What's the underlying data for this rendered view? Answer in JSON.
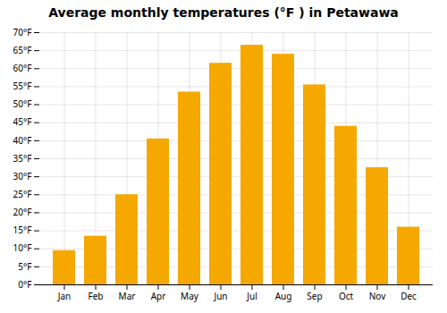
{
  "chart_data": {
    "type": "bar",
    "title": "Average monthly temperatures (°F ) in Petawawa",
    "categories": [
      "Jan",
      "Feb",
      "Mar",
      "Apr",
      "May",
      "Jun",
      "Jul",
      "Aug",
      "Sep",
      "Oct",
      "Nov",
      "Dec"
    ],
    "values": [
      9.5,
      13.5,
      25.0,
      40.5,
      53.5,
      61.5,
      66.5,
      64.0,
      55.5,
      44.0,
      32.5,
      16.0
    ],
    "color": "#F5A800",
    "ylim": [
      0,
      70
    ],
    "yticks": [
      {
        "value": 0,
        "label": "0°F"
      },
      {
        "value": 5,
        "label": "5°F"
      },
      {
        "value": 10,
        "label": "10°F"
      },
      {
        "value": 15,
        "label": "15°F"
      },
      {
        "value": 20,
        "label": "20°F"
      },
      {
        "value": 25,
        "label": "25°F"
      },
      {
        "value": 30,
        "label": "30°F"
      },
      {
        "value": 35,
        "label": "35°F"
      },
      {
        "value": 40,
        "label": "40°F"
      },
      {
        "value": 45,
        "label": "45°F"
      },
      {
        "value": 50,
        "label": "50°F"
      },
      {
        "value": 55,
        "label": "55°F"
      },
      {
        "value": 60,
        "label": "60°F"
      },
      {
        "value": 65,
        "label": "65°F"
      },
      {
        "value": 70,
        "label": "70°F"
      }
    ],
    "grid": true
  }
}
